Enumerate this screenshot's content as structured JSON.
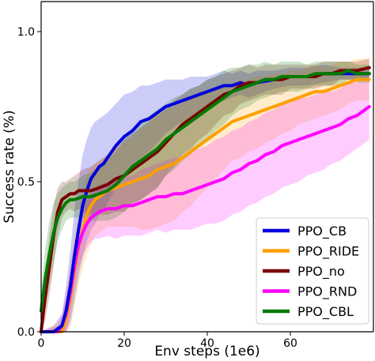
{
  "chart_data": {
    "type": "line",
    "title": "",
    "xlabel": "Env steps (1e6)",
    "ylabel": "Success rate (%)",
    "xlim": [
      0,
      80
    ],
    "ylim": [
      0,
      1.1
    ],
    "xticks": [
      0,
      20,
      40,
      60
    ],
    "xtick_labels": [
      "0",
      "20",
      "40",
      "60"
    ],
    "yticks": [
      0,
      0.5,
      1.0
    ],
    "ytick_labels": [
      "0.0",
      "0.5",
      "1.0"
    ],
    "grid": false,
    "legend_position": "lower-right",
    "series": [
      {
        "name": "PPO_CB",
        "color": "#0000dd",
        "x": [
          0,
          3,
          5,
          6,
          7,
          8,
          9,
          10,
          11,
          12,
          13,
          14,
          15,
          16,
          18,
          20,
          22,
          24,
          26,
          28,
          30,
          32,
          34,
          36,
          38,
          40,
          42,
          44,
          46,
          48,
          50,
          52,
          56,
          60,
          64,
          68,
          72,
          76,
          79
        ],
        "y": [
          0.0,
          0.0,
          0.02,
          0.07,
          0.15,
          0.25,
          0.34,
          0.42,
          0.47,
          0.51,
          0.53,
          0.55,
          0.56,
          0.58,
          0.62,
          0.65,
          0.67,
          0.7,
          0.71,
          0.73,
          0.75,
          0.76,
          0.77,
          0.78,
          0.79,
          0.8,
          0.81,
          0.82,
          0.82,
          0.83,
          0.82,
          0.83,
          0.84,
          0.85,
          0.85,
          0.86,
          0.86,
          0.86,
          0.86
        ],
        "band_width": [
          0.0,
          0.02,
          0.04,
          0.08,
          0.12,
          0.15,
          0.16,
          0.17,
          0.17,
          0.17,
          0.17,
          0.16,
          0.16,
          0.15,
          0.14,
          0.14,
          0.13,
          0.12,
          0.11,
          0.1,
          0.09,
          0.08,
          0.07,
          0.07,
          0.06,
          0.05,
          0.05,
          0.05,
          0.04,
          0.04,
          0.04,
          0.04,
          0.03,
          0.03,
          0.03,
          0.03,
          0.02,
          0.02,
          0.02
        ]
      },
      {
        "name": "PPO_RIDE",
        "color": "#ff9f00",
        "x": [
          0,
          5,
          6,
          7,
          8,
          9,
          10,
          11,
          12,
          13,
          14,
          16,
          18,
          20,
          22,
          24,
          26,
          28,
          30,
          32,
          34,
          36,
          38,
          40,
          42,
          44,
          46,
          48,
          50,
          52,
          54,
          56,
          58,
          60,
          62,
          64,
          66,
          68,
          70,
          72,
          74,
          76,
          78,
          79
        ],
        "y": [
          0.0,
          0.0,
          0.04,
          0.11,
          0.2,
          0.28,
          0.34,
          0.39,
          0.42,
          0.44,
          0.45,
          0.47,
          0.48,
          0.49,
          0.5,
          0.51,
          0.52,
          0.54,
          0.55,
          0.56,
          0.58,
          0.6,
          0.62,
          0.64,
          0.66,
          0.68,
          0.7,
          0.71,
          0.72,
          0.73,
          0.74,
          0.75,
          0.76,
          0.77,
          0.78,
          0.79,
          0.8,
          0.8,
          0.81,
          0.82,
          0.83,
          0.84,
          0.84,
          0.84
        ],
        "band_width": [
          0.0,
          0.04,
          0.08,
          0.1,
          0.12,
          0.12,
          0.13,
          0.13,
          0.13,
          0.12,
          0.12,
          0.12,
          0.13,
          0.14,
          0.15,
          0.17,
          0.18,
          0.19,
          0.19,
          0.19,
          0.18,
          0.18,
          0.17,
          0.16,
          0.15,
          0.14,
          0.13,
          0.13,
          0.12,
          0.12,
          0.11,
          0.11,
          0.1,
          0.1,
          0.09,
          0.09,
          0.09,
          0.08,
          0.08,
          0.08,
          0.07,
          0.07,
          0.07,
          0.07
        ]
      },
      {
        "name": "PPO_no",
        "color": "#7a0000",
        "x": [
          0,
          1,
          2,
          3,
          4,
          5,
          6,
          7,
          8,
          9,
          10,
          12,
          14,
          16,
          18,
          20,
          22,
          24,
          26,
          28,
          30,
          32,
          34,
          36,
          38,
          40,
          42,
          44,
          46,
          48,
          50,
          52,
          54,
          56,
          58,
          60,
          62,
          64,
          66,
          68,
          70,
          72,
          74,
          76,
          79
        ],
        "y": [
          0.0,
          0.12,
          0.22,
          0.32,
          0.4,
          0.44,
          0.45,
          0.46,
          0.46,
          0.47,
          0.47,
          0.47,
          0.48,
          0.49,
          0.51,
          0.52,
          0.54,
          0.56,
          0.58,
          0.6,
          0.63,
          0.66,
          0.69,
          0.71,
          0.73,
          0.75,
          0.77,
          0.79,
          0.8,
          0.82,
          0.83,
          0.83,
          0.84,
          0.84,
          0.84,
          0.85,
          0.85,
          0.85,
          0.85,
          0.86,
          0.86,
          0.87,
          0.87,
          0.87,
          0.88
        ],
        "band_width": [
          0.05,
          0.08,
          0.1,
          0.1,
          0.08,
          0.06,
          0.05,
          0.05,
          0.06,
          0.06,
          0.07,
          0.08,
          0.09,
          0.1,
          0.11,
          0.12,
          0.12,
          0.12,
          0.12,
          0.12,
          0.11,
          0.11,
          0.1,
          0.1,
          0.09,
          0.09,
          0.08,
          0.07,
          0.07,
          0.06,
          0.06,
          0.05,
          0.05,
          0.05,
          0.05,
          0.04,
          0.04,
          0.04,
          0.04,
          0.04,
          0.04,
          0.03,
          0.03,
          0.03,
          0.03
        ]
      },
      {
        "name": "PPO_RND",
        "color": "#ff00ff",
        "x": [
          0,
          4,
          5,
          6,
          7,
          8,
          9,
          10,
          11,
          12,
          13,
          14,
          16,
          18,
          20,
          22,
          24,
          26,
          28,
          30,
          32,
          34,
          36,
          38,
          40,
          42,
          44,
          46,
          48,
          50,
          52,
          54,
          56,
          58,
          60,
          62,
          64,
          66,
          68,
          70,
          72,
          74,
          76,
          78,
          79
        ],
        "y": [
          0.0,
          0.0,
          0.02,
          0.06,
          0.13,
          0.22,
          0.29,
          0.33,
          0.36,
          0.38,
          0.39,
          0.4,
          0.41,
          0.41,
          0.42,
          0.42,
          0.43,
          0.44,
          0.45,
          0.45,
          0.46,
          0.46,
          0.47,
          0.48,
          0.49,
          0.5,
          0.51,
          0.53,
          0.54,
          0.56,
          0.57,
          0.59,
          0.6,
          0.62,
          0.63,
          0.64,
          0.65,
          0.66,
          0.67,
          0.68,
          0.69,
          0.71,
          0.72,
          0.74,
          0.75
        ],
        "band_width": [
          0.0,
          0.02,
          0.04,
          0.06,
          0.08,
          0.08,
          0.08,
          0.08,
          0.08,
          0.08,
          0.08,
          0.09,
          0.09,
          0.1,
          0.1,
          0.1,
          0.11,
          0.11,
          0.11,
          0.12,
          0.12,
          0.12,
          0.13,
          0.13,
          0.13,
          0.14,
          0.14,
          0.14,
          0.14,
          0.14,
          0.14,
          0.14,
          0.14,
          0.14,
          0.14,
          0.14,
          0.13,
          0.13,
          0.13,
          0.12,
          0.12,
          0.12,
          0.11,
          0.11,
          0.11
        ]
      },
      {
        "name": "PPO_CBL",
        "color": "#007a00",
        "x": [
          0,
          1,
          2,
          3,
          4,
          5,
          6,
          7,
          8,
          10,
          12,
          14,
          16,
          18,
          20,
          22,
          24,
          26,
          28,
          30,
          32,
          34,
          36,
          38,
          40,
          42,
          44,
          46,
          48,
          50,
          52,
          54,
          56,
          58,
          60,
          62,
          64,
          66,
          68,
          70,
          72,
          74,
          76,
          79
        ],
        "y": [
          0.07,
          0.18,
          0.26,
          0.33,
          0.38,
          0.41,
          0.43,
          0.44,
          0.44,
          0.45,
          0.45,
          0.46,
          0.47,
          0.49,
          0.52,
          0.55,
          0.57,
          0.59,
          0.61,
          0.64,
          0.66,
          0.68,
          0.7,
          0.72,
          0.74,
          0.76,
          0.78,
          0.8,
          0.81,
          0.82,
          0.83,
          0.84,
          0.84,
          0.85,
          0.85,
          0.85,
          0.85,
          0.86,
          0.86,
          0.86,
          0.86,
          0.87,
          0.86,
          0.86
        ],
        "band_width": [
          0.07,
          0.1,
          0.11,
          0.1,
          0.08,
          0.07,
          0.06,
          0.06,
          0.06,
          0.07,
          0.08,
          0.09,
          0.1,
          0.11,
          0.12,
          0.12,
          0.13,
          0.13,
          0.13,
          0.12,
          0.12,
          0.11,
          0.11,
          0.1,
          0.1,
          0.09,
          0.09,
          0.08,
          0.07,
          0.07,
          0.06,
          0.06,
          0.05,
          0.05,
          0.05,
          0.05,
          0.04,
          0.04,
          0.04,
          0.04,
          0.04,
          0.03,
          0.03,
          0.03
        ]
      }
    ]
  }
}
